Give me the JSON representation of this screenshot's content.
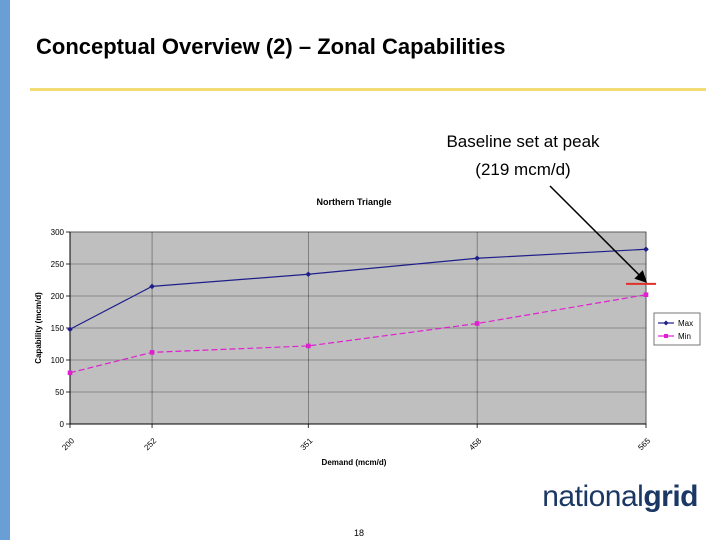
{
  "slide": {
    "title": "Conceptual Overview (2) – Zonal Capabilities",
    "annotation_line1": "Baseline set at peak",
    "annotation_line2": "(219 mcm/d)",
    "logo_light": "national",
    "logo_bold": "grid",
    "page_number": "18"
  },
  "colors": {
    "accent_bar": "#6a9fd6",
    "title_rule": "#f3dc75",
    "plot_area": "#bfbfbf",
    "max_series": "#1f1f8a",
    "min_series": "#e020d0",
    "baseline_marker": "#e0302a",
    "logo": "#1b3764"
  },
  "chart_data": {
    "type": "line",
    "title": "Northern Triangle",
    "xlabel": "Demand (mcm/d)",
    "ylabel": "Capability (mcm/d)",
    "x": [
      "200",
      "252",
      "351",
      "458",
      "565"
    ],
    "x_values": [
      200,
      252,
      351,
      458,
      565
    ],
    "ylim": [
      0,
      300
    ],
    "yticks": [
      0,
      50,
      100,
      150,
      200,
      250,
      300
    ],
    "grid": true,
    "legend": "right",
    "series": [
      {
        "name": "Max",
        "values": [
          148,
          215,
          234,
          259,
          273
        ],
        "marker": "diamond"
      },
      {
        "name": "Min",
        "values": [
          80,
          112,
          122,
          157,
          202
        ],
        "marker": "square"
      }
    ],
    "baseline_annotation": {
      "value": 219,
      "at_x": 565
    }
  }
}
